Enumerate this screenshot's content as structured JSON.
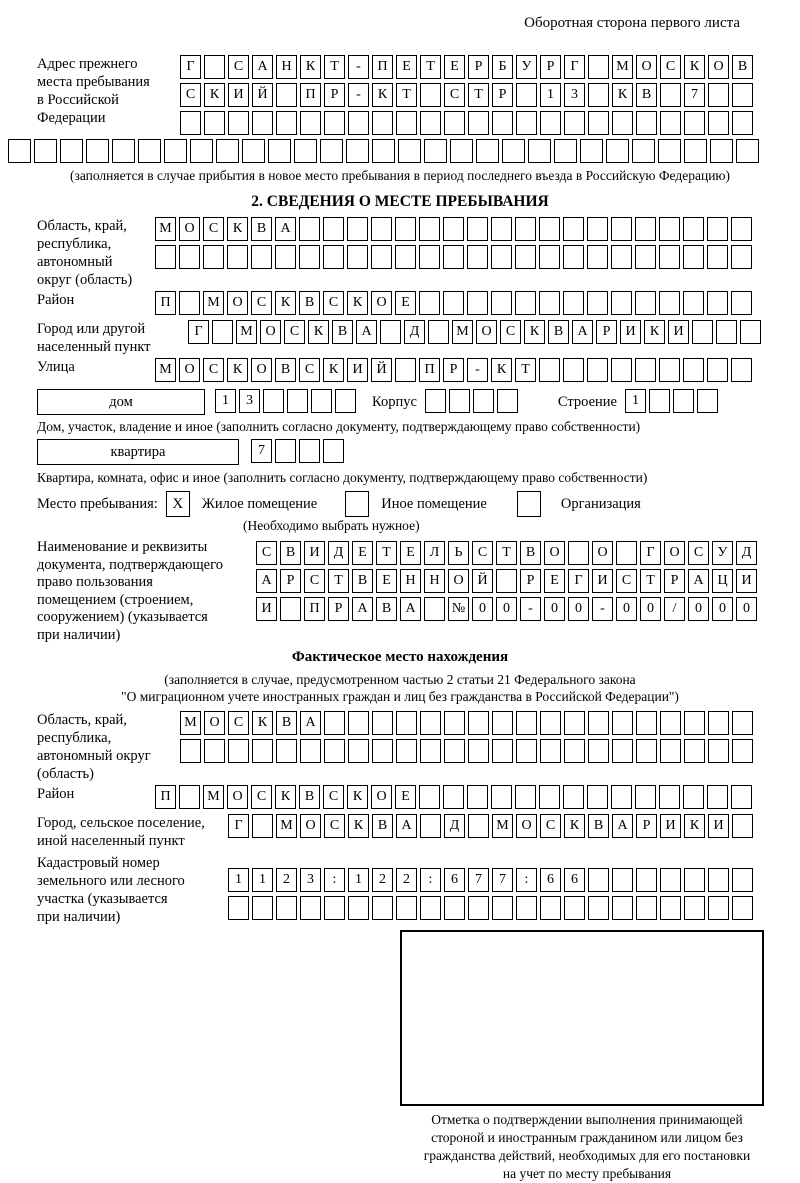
{
  "header": {
    "title": "Оборотная сторона первого листа"
  },
  "prev_address": {
    "label_lines": [
      "Адрес прежнего",
      "места пребывания",
      "в Российской",
      "Федерации"
    ],
    "rows": [
      {
        "len": 24,
        "text": "Г САНКТ-ПЕТЕРБУРГ МОСКОВ"
      },
      {
        "len": 24,
        "text": "СКИЙ ПР-КТ СТР 13 КВ 7"
      },
      {
        "len": 24,
        "text": ""
      },
      {
        "len": 29,
        "text": ""
      }
    ],
    "note": "(заполняется в случае прибытия в новое место пребывания в период последнего въезда в Российскую Федерацию)"
  },
  "section2": {
    "heading": "2. СВЕДЕНИЯ О МЕСТЕ ПРЕБЫВАНИЯ",
    "region": {
      "label_lines": [
        "Область, край,",
        "республика,",
        "автономный",
        "округ (область)"
      ],
      "rows": [
        {
          "len": 25,
          "text": "МОСКВА"
        },
        {
          "len": 25,
          "text": ""
        }
      ]
    },
    "district": {
      "label": "Район",
      "row": {
        "len": 25,
        "text": "П МОСКВСКОЕ"
      }
    },
    "city": {
      "label_lines": [
        "Город или другой",
        "населенный пункт"
      ],
      "row": {
        "len": 24,
        "text": "Г МОСКВА Д МОСКВАРИКИ"
      }
    },
    "street": {
      "label": "Улица",
      "row": {
        "len": 25,
        "text": "МОСКОВСКИЙ ПР-КТ"
      }
    },
    "house": {
      "box_label": "дом",
      "num_row": {
        "len": 6,
        "text": "13"
      },
      "korpus_label": "Корпус",
      "korpus_row": {
        "len": 4,
        "text": ""
      },
      "stroenie_label": "Строение",
      "stroenie_row": {
        "len": 4,
        "text": "1"
      },
      "note": "Дом, участок, владение и иное (заполнить согласно документу, подтверждающему право собственности)"
    },
    "apartment": {
      "box_label": "квартира",
      "row": {
        "len": 4,
        "text": "7"
      },
      "note": "Квартира, комната, офис и иное (заполнить согласно документу, подтверждающему право собственности)"
    },
    "stay_type": {
      "label": "Место пребывания:",
      "options": [
        {
          "mark": "X",
          "label": "Жилое помещение"
        },
        {
          "mark": "",
          "label": "Иное помещение"
        },
        {
          "mark": "",
          "label": "Организация"
        }
      ],
      "note": "(Необходимо выбрать нужное)"
    },
    "document": {
      "label_lines": [
        "Наименование и реквизиты",
        "документа, подтверждающего",
        "право пользования",
        "помещением (строением,",
        "сооружением) (указывается",
        "при наличии)"
      ],
      "rows": [
        {
          "len": 21,
          "text": "СВИДЕТЕЛЬСТВО О ГОСУД"
        },
        {
          "len": 21,
          "text": "АРСТВЕННОЙ РЕГИСТРАЦИ"
        },
        {
          "len": 21,
          "text": "И ПРАВА №00-00-00/000"
        }
      ]
    }
  },
  "section3": {
    "heading": "Фактическое место нахождения",
    "note_lines": [
      "(заполняется в случае, предусмотренном частью 2 статьи 21 Федерального закона",
      "\"О миграционном учете иностранных граждан и лиц без гражданства в Российской Федерации\")"
    ],
    "region": {
      "label_lines": [
        "Область, край,",
        "республика,",
        "автономный округ",
        "(область)"
      ],
      "rows": [
        {
          "len": 24,
          "text": "МОСКВА"
        },
        {
          "len": 24,
          "text": ""
        }
      ]
    },
    "district": {
      "label": "Район",
      "row": {
        "len": 25,
        "text": "П МОСКВСКОЕ"
      }
    },
    "city": {
      "label_lines": [
        "Город, сельское поселение,",
        "иной населенный пункт"
      ],
      "row": {
        "len": 22,
        "text": "Г МОСКВА Д МОСКВАРИКИ"
      }
    },
    "cadastre": {
      "label_lines": [
        "Кадастровый номер",
        "земельного или лесного",
        "участка (указывается",
        "при наличии)"
      ],
      "rows": [
        {
          "len": 22,
          "text": "1123:122:677:66"
        },
        {
          "len": 22,
          "text": ""
        }
      ]
    }
  },
  "stamp": {
    "caption_lines": [
      "Отметка о подтверждении выполнения принимающей",
      "стороной и иностранным гражданином или лицом без",
      "гражданства действий, необходимых для его постановки",
      "на учет по месту пребывания"
    ]
  }
}
